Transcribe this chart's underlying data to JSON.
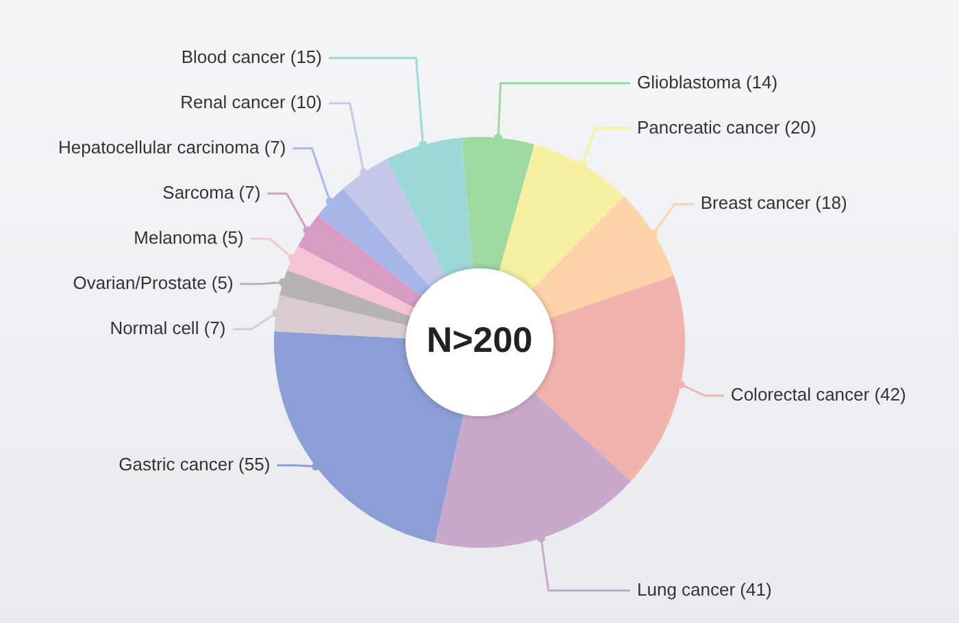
{
  "chart_data": {
    "type": "donut",
    "annotations": [
      "N>200"
    ],
    "categories": [
      "Glioblastoma",
      "Pancreatic cancer",
      "Breast cancer",
      "Colorectal cancer",
      "Lung cancer",
      "Gastric cancer",
      "Normal cell",
      "Ovarian/Prostate",
      "Melanoma",
      "Sarcoma",
      "Hepatocellular carcinoma",
      "Renal cancer",
      "Blood cancer"
    ],
    "values": [
      14,
      20,
      18,
      42,
      41,
      55,
      7,
      5,
      5,
      7,
      7,
      10,
      15
    ],
    "colors": [
      "#9dd9a0",
      "#f6f0a0",
      "#fdd3aa",
      "#f0b3ad",
      "#c8a9cc",
      "#8b9fd6",
      "#d8ccd0",
      "#b9b2b4",
      "#f5c3d6",
      "#d89bc4",
      "#a7b7ea",
      "#c5c8e8",
      "#9dd9d9"
    ],
    "value_labels": [
      "(14)",
      "(20)",
      "(18)",
      "(42)",
      "(41)",
      "(55)",
      "(7)",
      "(5)",
      "(5)",
      "(7)",
      "(7)",
      "(10)",
      "(15)"
    ]
  }
}
